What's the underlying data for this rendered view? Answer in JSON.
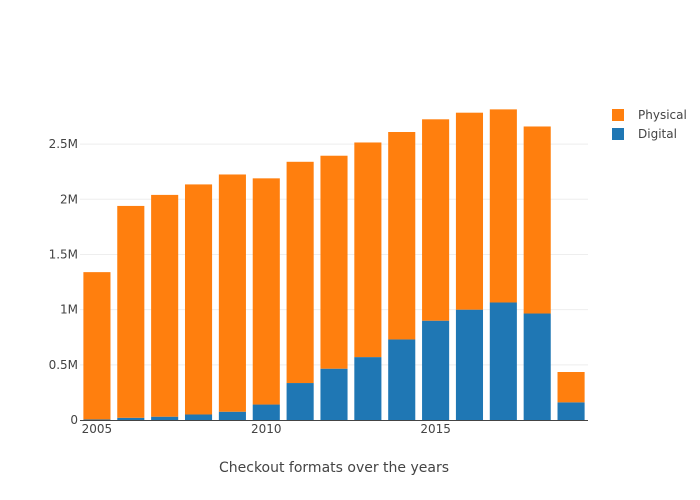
{
  "chart_data": {
    "type": "bar",
    "stacked": true,
    "title": "",
    "xlabel": "Checkout formats over the years",
    "ylabel": "",
    "x": [
      2005,
      2006,
      2007,
      2008,
      2009,
      2010,
      2011,
      2012,
      2013,
      2014,
      2015,
      2016,
      2017,
      2018,
      2019
    ],
    "series": [
      {
        "name": "Digital",
        "color": "#1f77b4",
        "values": [
          5000,
          20000,
          30000,
          50000,
          75000,
          140000,
          335000,
          465000,
          570000,
          730000,
          900000,
          1000000,
          1065000,
          965000,
          160000
        ]
      },
      {
        "name": "Physical",
        "color": "#ff7f0e",
        "values": [
          1335000,
          1920000,
          2010000,
          2085000,
          2150000,
          2050000,
          2005000,
          1930000,
          1945000,
          1880000,
          1825000,
          1785000,
          1750000,
          1695000,
          275000
        ]
      }
    ],
    "xticks": [
      2005,
      2010,
      2015
    ],
    "xtick_labels": [
      "2005",
      "2010",
      "2015"
    ],
    "yticks": [
      0,
      500000,
      1000000,
      1500000,
      2000000,
      2500000
    ],
    "ytick_labels": [
      "0",
      "0.5M",
      "1M",
      "1.5M",
      "2M",
      "2.5M"
    ],
    "ylim": [
      0,
      2900000
    ],
    "grid": true,
    "legend_position": "top-right",
    "legend_order": [
      "Physical",
      "Digital"
    ]
  }
}
